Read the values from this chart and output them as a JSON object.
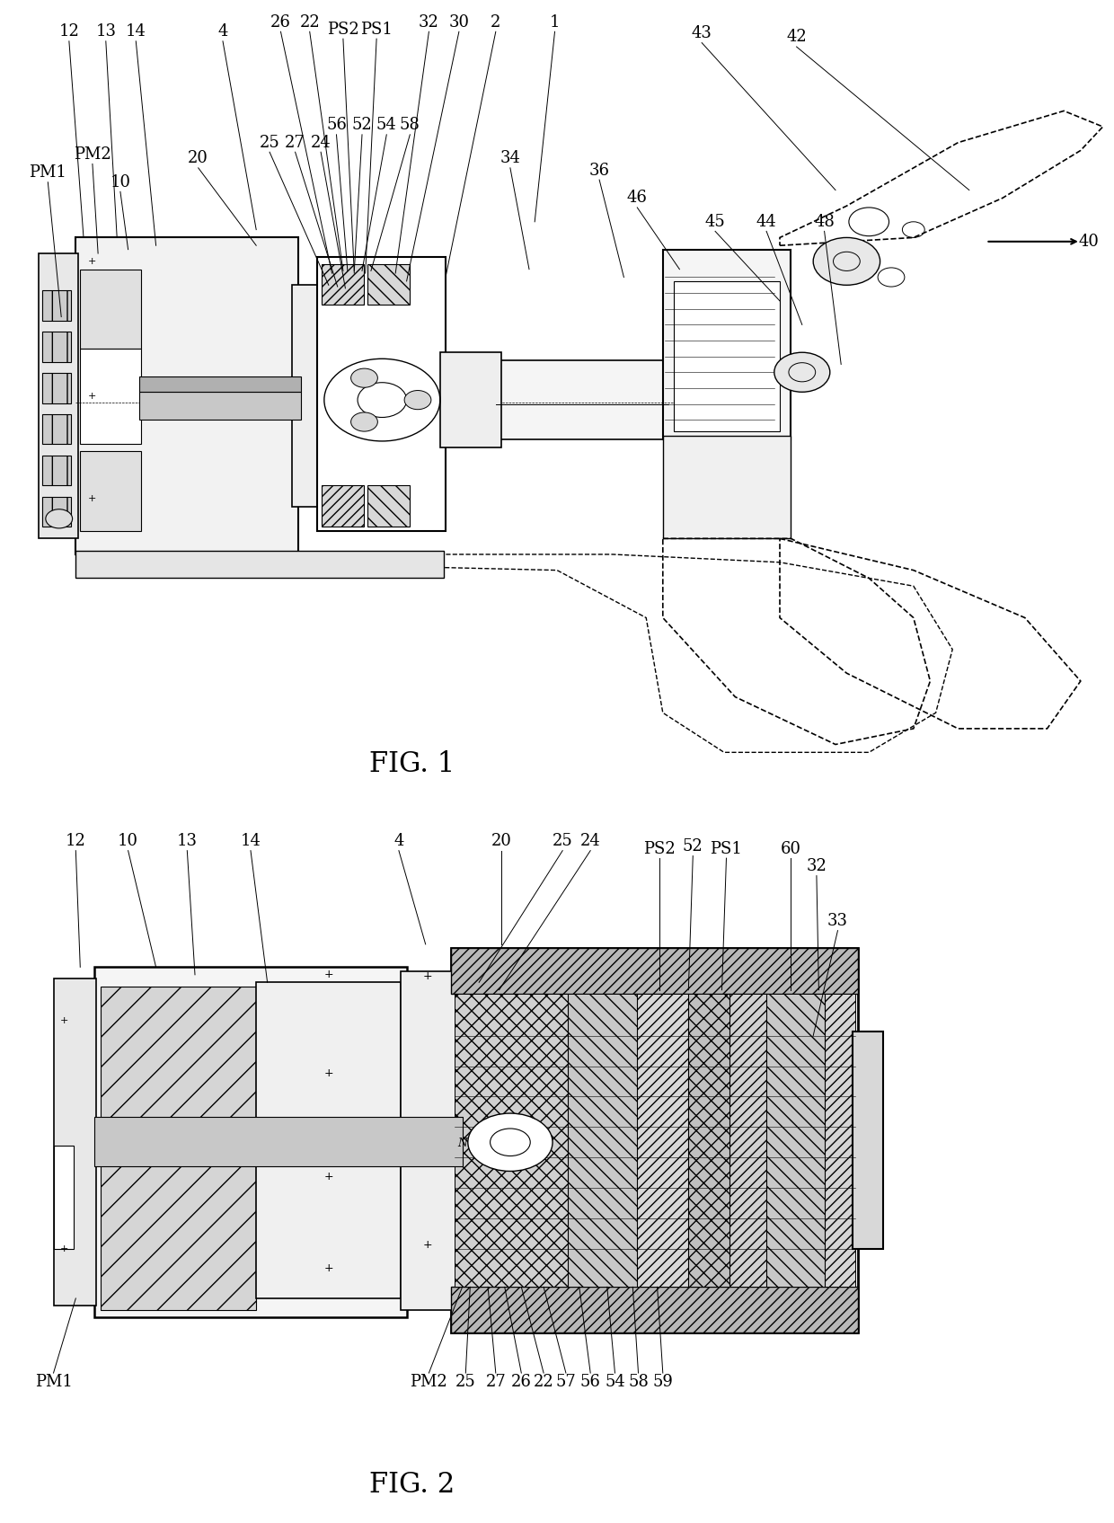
{
  "fig_title1": "FIG. 1",
  "fig_title2": "FIG. 2",
  "background_color": "#ffffff",
  "line_color": "#000000",
  "font_size_label": 13,
  "font_size_fig_title": 22,
  "font_size_small": 8,
  "font_size_plus": 9
}
